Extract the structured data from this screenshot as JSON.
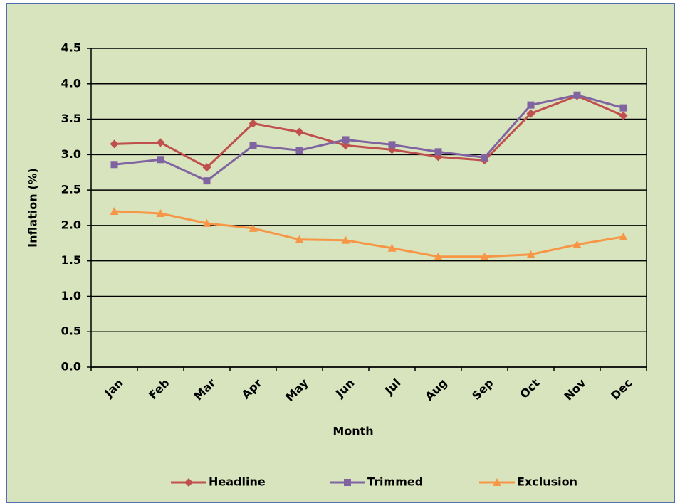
{
  "chart_data": {
    "type": "line",
    "x_label": "Month",
    "y_label": "Inflation (%)",
    "categories": [
      "Jan",
      "Feb",
      "Mar",
      "Apr",
      "May",
      "Jun",
      "Jul",
      "Aug",
      "Sep",
      "Oct",
      "Nov",
      "Dec"
    ],
    "series": [
      {
        "name": "Headline",
        "color": "#c0504d",
        "marker": "diamond",
        "values": [
          3.15,
          3.17,
          2.82,
          3.44,
          3.32,
          3.13,
          3.07,
          2.97,
          2.92,
          3.58,
          3.83,
          3.55
        ]
      },
      {
        "name": "Trimmed",
        "color": "#8064a2",
        "marker": "square",
        "values": [
          2.86,
          2.93,
          2.63,
          3.13,
          3.06,
          3.21,
          3.14,
          3.04,
          2.96,
          3.7,
          3.84,
          3.66
        ]
      },
      {
        "name": "Exclusion",
        "color": "#f79646",
        "marker": "triangle",
        "values": [
          2.2,
          2.17,
          2.03,
          1.96,
          1.8,
          1.79,
          1.68,
          1.56,
          1.56,
          1.59,
          1.73,
          1.84
        ]
      }
    ],
    "ylim": [
      0,
      4.5
    ],
    "yticks": [
      {
        "value": 0,
        "label": "0.0"
      },
      {
        "value": 0.5,
        "label": "0.5"
      },
      {
        "value": 1,
        "label": "1.0"
      },
      {
        "value": 1.5,
        "label": "1.5"
      },
      {
        "value": 2,
        "label": "2.0"
      },
      {
        "value": 2.5,
        "label": "2.5"
      },
      {
        "value": 3,
        "label": "3.0"
      },
      {
        "value": 3.5,
        "label": "3.5"
      },
      {
        "value": 4,
        "label": "4.0"
      },
      {
        "value": 4.5,
        "label": "4.5"
      }
    ],
    "grid": true,
    "legend": "bottom"
  }
}
